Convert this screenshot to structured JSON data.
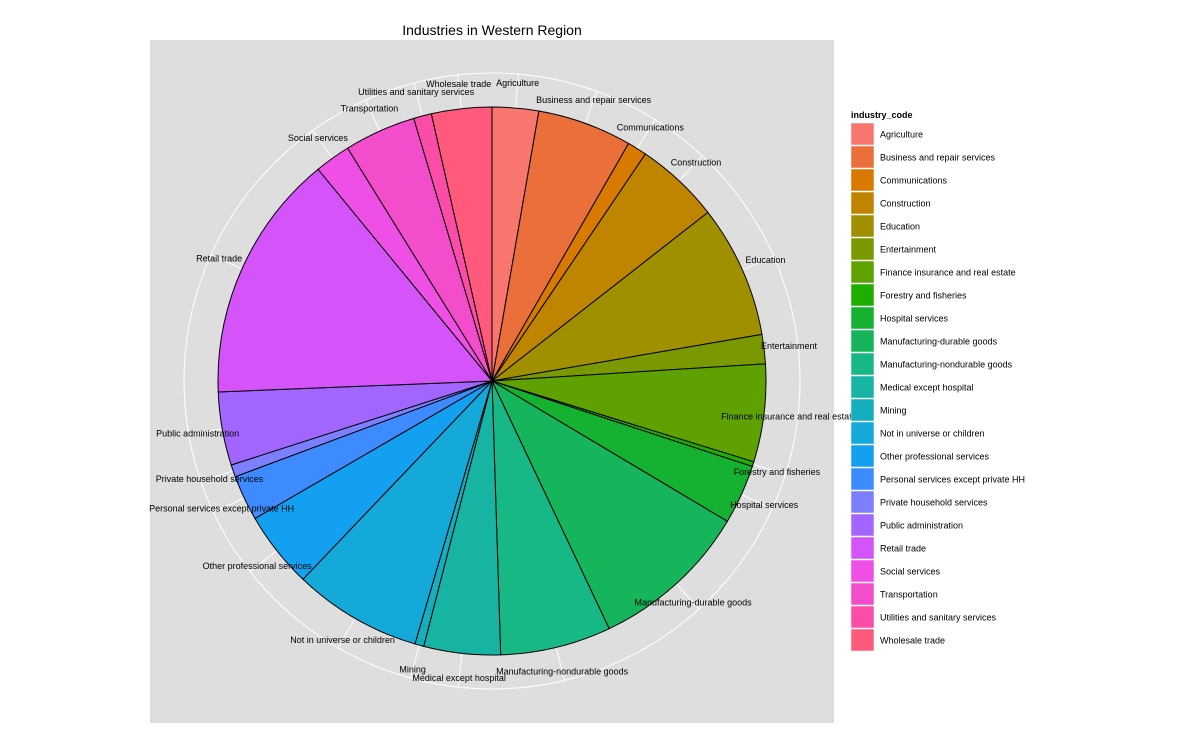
{
  "chart_data": {
    "type": "pie",
    "title": "Industries in Western Region",
    "legend_title": "industry_code",
    "legend_position": "right",
    "grid": true,
    "slices": [
      {
        "label": "Agriculture",
        "value": 2.85,
        "color": "#F8766D"
      },
      {
        "label": "Business and repair services",
        "value": 5.8,
        "color": "#EA6F3A"
      },
      {
        "label": "Communications",
        "value": 1.2,
        "color": "#D87900"
      },
      {
        "label": "Construction",
        "value": 5.2,
        "color": "#BF8400"
      },
      {
        "label": "Education",
        "value": 8.15,
        "color": "#A09000"
      },
      {
        "label": "Entertainment",
        "value": 1.8,
        "color": "#7A9900"
      },
      {
        "label": "Finance insurance and real estate",
        "value": 6.0,
        "color": "#5FA200"
      },
      {
        "label": "Forestry and fisheries",
        "value": 0.3,
        "color": "#1EAD00"
      },
      {
        "label": "Hospital services",
        "value": 3.65,
        "color": "#15B130"
      },
      {
        "label": "Manufacturing-durable goods",
        "value": 9.8,
        "color": "#16B55C"
      },
      {
        "label": "Manufacturing-nondurable goods",
        "value": 6.8,
        "color": "#18B886"
      },
      {
        "label": "Medical except hospital",
        "value": 4.7,
        "color": "#17B4A4"
      },
      {
        "label": "Mining",
        "value": 0.55,
        "color": "#15AEBE"
      },
      {
        "label": "Not in universe or children",
        "value": 7.9,
        "color": "#14A9D8"
      },
      {
        "label": "Other professional services",
        "value": 4.7,
        "color": "#13A0F1"
      },
      {
        "label": "Personal services except private HH",
        "value": 2.8,
        "color": "#3E8BFF"
      },
      {
        "label": "Private household services",
        "value": 0.75,
        "color": "#7C80FF"
      },
      {
        "label": "Public administration",
        "value": 4.5,
        "color": "#A266FF"
      },
      {
        "label": "Retail trade",
        "value": 15.3,
        "color": "#D454F9"
      },
      {
        "label": "Social services",
        "value": 2.2,
        "color": "#EE4FE5"
      },
      {
        "label": "Transportation",
        "value": 4.4,
        "color": "#F44DCB"
      },
      {
        "label": "Utilities and sanitary services",
        "value": 1.1,
        "color": "#FB4DA8"
      },
      {
        "label": "Wholesale trade",
        "value": 3.7,
        "color": "#FF5A7C"
      }
    ]
  }
}
